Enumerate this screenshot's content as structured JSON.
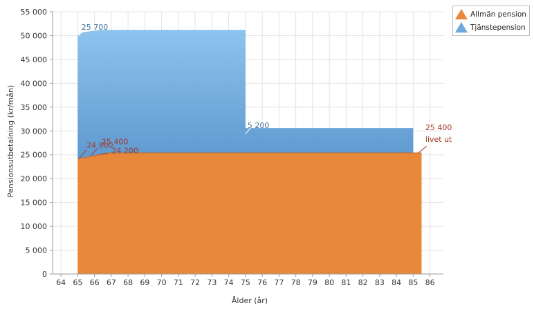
{
  "chart_data": {
    "type": "area",
    "title": "",
    "xlabel": "Ålder (år)",
    "ylabel": "Pensionsutbetalning (kr/mån)",
    "xlim": [
      63.5,
      86.8
    ],
    "ylim": [
      0,
      55000
    ],
    "x_ticks": [
      64,
      65,
      66,
      67,
      68,
      69,
      70,
      71,
      72,
      73,
      74,
      75,
      76,
      77,
      78,
      79,
      80,
      81,
      82,
      83,
      84,
      85,
      86
    ],
    "y_ticks": [
      0,
      5000,
      10000,
      15000,
      20000,
      25000,
      30000,
      35000,
      40000,
      45000,
      50000,
      55000
    ],
    "y_tick_labels": [
      "0",
      "5 000",
      "10 000",
      "15 000",
      "20 000",
      "25 000",
      "30 000",
      "35 000",
      "40 000",
      "45 000",
      "50 000",
      "55 000"
    ],
    "grid": true,
    "legend_position": "top-right",
    "series": [
      {
        "name": "Allmän pension",
        "color": "#e8883a",
        "points": [
          [
            65,
            24100
          ],
          [
            66.8,
            25400
          ],
          [
            85.5,
            25400
          ],
          [
            85.5,
            0
          ]
        ]
      },
      {
        "name": "Tjänstepension",
        "color": "#6fa9dd",
        "points": [
          [
            65,
            50000
          ],
          [
            65.3,
            50700
          ],
          [
            66.4,
            51200
          ],
          [
            75,
            51200
          ],
          [
            75,
            30600
          ],
          [
            85,
            30600
          ],
          [
            85,
            25400
          ]
        ]
      }
    ],
    "annotations": [
      {
        "text": "25 700",
        "x": 65.1,
        "y": 51200,
        "series": "Tjänstepension"
      },
      {
        "text": "5 200",
        "x": 75.0,
        "y": 30600,
        "series": "Tjänstepension"
      },
      {
        "text": "24 900",
        "x": 65.4,
        "y": 26500,
        "series": "Allmän pension"
      },
      {
        "text": "25 400",
        "x": 66.3,
        "y": 27200,
        "series": "Allmän pension"
      },
      {
        "text": "24 200",
        "x": 66.9,
        "y": 25300,
        "series": "Allmän pension"
      },
      {
        "text": "25 400",
        "x": 85.6,
        "y": 30200,
        "series": "Allmän pension"
      },
      {
        "text": "livet ut",
        "x": 85.6,
        "y": 27700,
        "series": "Allmän pension"
      }
    ]
  },
  "legend": {
    "items": [
      {
        "label": "Allmän pension",
        "color": "#e8883a"
      },
      {
        "label": "Tjänstepension",
        "color": "#6fa9dd"
      }
    ]
  }
}
